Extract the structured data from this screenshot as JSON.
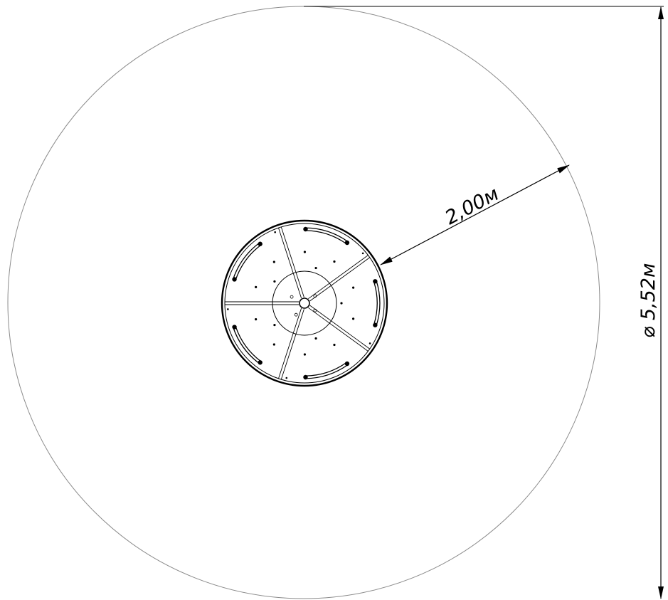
{
  "diagram": {
    "radius_dimension": "2,00м",
    "diameter_dimension": "⌀ 5,52м"
  },
  "colors": {
    "line": "#000000",
    "safety_zone": "#8a8a8a",
    "background": "#ffffff"
  }
}
